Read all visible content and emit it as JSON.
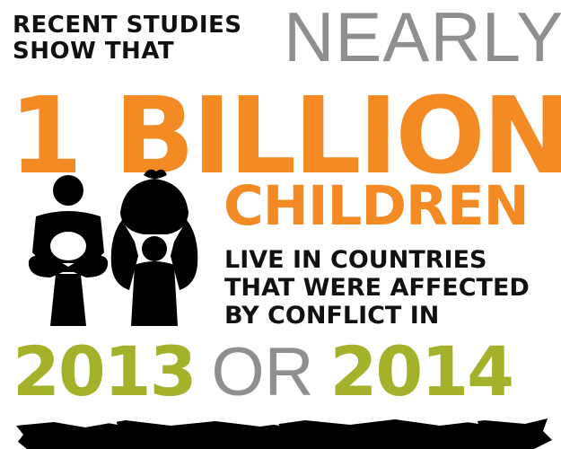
{
  "intro": {
    "line1": "RECENT STUDIES",
    "line2": "SHOW THAT"
  },
  "nearly": "NEARLY",
  "headline": "1 BILLION",
  "children": "CHILDREN",
  "statement": {
    "line1": "LIVE IN COUNTRIES",
    "line2": "THAT WERE AFFECTED",
    "line3": "BY CONFLICT IN"
  },
  "years": {
    "first": "2013",
    "connector": "OR",
    "second": "2014"
  },
  "colors": {
    "orange": "#f38a24",
    "green": "#a3b22a",
    "gray": "#8f8f8f",
    "black": "#111111"
  },
  "icons": [
    "seated-child-icon",
    "child-carrying-bundle-icon",
    "brush-stroke-divider"
  ]
}
